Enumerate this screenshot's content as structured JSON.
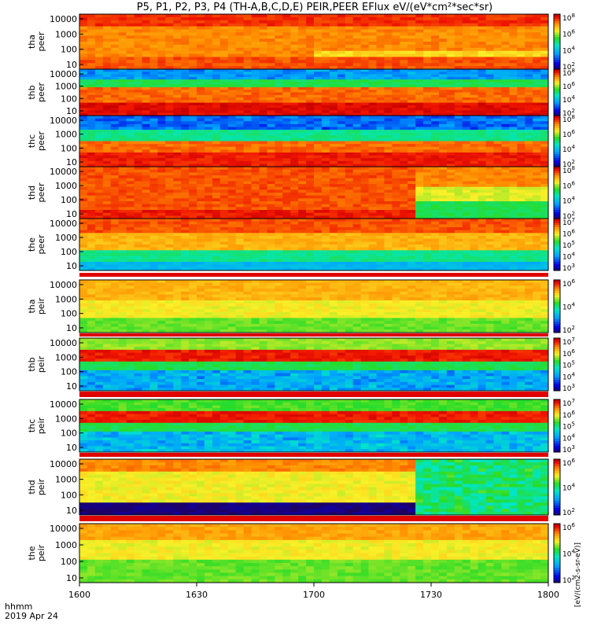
{
  "title": "P5, P1, P2, P3, P4 (TH-A,B,C,D,E) PEIR,PEER EFlux eV/(eV*cm²*sec*sr)",
  "footer": {
    "time_label": "hhmm",
    "date_label": "2019 Apr 24"
  },
  "colorbar_unit": "[eV/(cm2-s-sr-eV)]",
  "chart_data": [
    {
      "type": "heatmap",
      "ylabel": [
        "tha",
        "peer"
      ],
      "probe": "A",
      "species": "electron",
      "y_ticks": [
        "10000",
        "1000",
        "100",
        "10"
      ],
      "cbar_ticks": [
        "10^8",
        "10^6",
        "10^4",
        "10^2"
      ]
    },
    {
      "type": "heatmap",
      "ylabel": [
        "thb",
        "peer"
      ],
      "probe": "B",
      "species": "electron",
      "y_ticks": [
        "10000",
        "1000",
        "100",
        "10"
      ],
      "cbar_ticks": [
        "10^8",
        "10^6",
        "10^4",
        "10^2"
      ]
    },
    {
      "type": "heatmap",
      "ylabel": [
        "thc",
        "peer"
      ],
      "probe": "C",
      "species": "electron",
      "y_ticks": [
        "10000",
        "1000",
        "100",
        "10"
      ],
      "cbar_ticks": [
        "10^8",
        "10^6",
        "10^4",
        "10^2"
      ]
    },
    {
      "type": "heatmap",
      "ylabel": [
        "thd",
        "peer"
      ],
      "probe": "D",
      "species": "electron",
      "y_ticks": [
        "10000",
        "1000",
        "100",
        "10"
      ],
      "cbar_ticks": [
        "10^8",
        "10^6",
        "10^4",
        "10^2"
      ]
    },
    {
      "type": "heatmap",
      "ylabel": [
        "the",
        "peer"
      ],
      "probe": "E",
      "species": "electron",
      "y_ticks": [
        "10000",
        "1000",
        "100",
        "10"
      ],
      "cbar_ticks": [
        "10^7",
        "10^6",
        "10^5",
        "10^4",
        "10^3"
      ]
    },
    {
      "type": "heatmap",
      "ylabel": [
        "tha",
        "peir"
      ],
      "probe": "A",
      "species": "ion",
      "y_ticks": [
        "10000",
        "1000",
        "100",
        "10"
      ],
      "cbar_ticks": [
        "10^6",
        "10^4",
        "10^2"
      ]
    },
    {
      "type": "heatmap",
      "ylabel": [
        "thb",
        "peir"
      ],
      "probe": "B",
      "species": "ion",
      "y_ticks": [
        "10000",
        "1000",
        "100",
        "10"
      ],
      "cbar_ticks": [
        "10^7",
        "10^6",
        "10^5",
        "10^4",
        "10^3"
      ]
    },
    {
      "type": "heatmap",
      "ylabel": [
        "thc",
        "peir"
      ],
      "probe": "C",
      "species": "ion",
      "y_ticks": [
        "10000",
        "1000",
        "100",
        "10"
      ],
      "cbar_ticks": [
        "10^7",
        "10^6",
        "10^5",
        "10^4",
        "10^3"
      ]
    },
    {
      "type": "heatmap",
      "ylabel": [
        "thd",
        "peir"
      ],
      "probe": "D",
      "species": "ion",
      "y_ticks": [
        "10000",
        "1000",
        "100",
        "10"
      ],
      "cbar_ticks": [
        "10^6",
        "10^4",
        "10^2"
      ]
    },
    {
      "type": "heatmap",
      "ylabel": [
        "the",
        "peir"
      ],
      "probe": "E",
      "species": "ion",
      "y_ticks": [
        "10000",
        "1000",
        "100",
        "10"
      ],
      "cbar_ticks": [
        "10^6",
        "10^4",
        "10^2"
      ]
    }
  ],
  "x_ticks": [
    "1600",
    "1630",
    "1700",
    "1730",
    "1800"
  ]
}
